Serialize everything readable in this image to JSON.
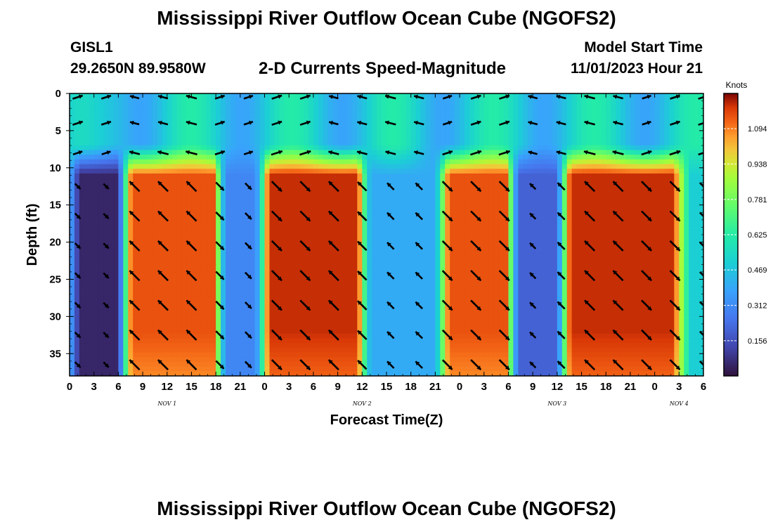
{
  "header": {
    "title": "Mississippi River Outflow Ocean Cube (NGOFS2)",
    "station_id": "GISL1",
    "station_coords": "29.2650N  89.9580W",
    "subtitle": "2-D Currents Speed-Magnitude",
    "model_start_label": "Model Start Time",
    "model_start_value": "11/01/2023 Hour 21"
  },
  "footer": {
    "title": "Mississippi River Outflow Ocean Cube (NGOFS2)"
  },
  "chart_data": {
    "type": "heatmap",
    "title": "2-D Currents Speed-Magnitude",
    "xlabel": "Forecast Time(Z)",
    "ylabel": "Depth (ft)",
    "x_tick_labels": [
      "0",
      "3",
      "6",
      "9",
      "12",
      "15",
      "18",
      "21",
      "0",
      "3",
      "6",
      "9",
      "12",
      "15",
      "18",
      "21",
      "0",
      "3",
      "6",
      "9",
      "12",
      "15",
      "18",
      "21",
      "0",
      "3",
      "6"
    ],
    "x_tick_hours": [
      0,
      3,
      6,
      9,
      12,
      15,
      18,
      21,
      24,
      27,
      30,
      33,
      36,
      39,
      42,
      45,
      48,
      51,
      54,
      57,
      60,
      63,
      66,
      69,
      72,
      75,
      78
    ],
    "x_range_hours": [
      0,
      78
    ],
    "day_labels": [
      {
        "label": "NOV 1",
        "hour": 12
      },
      {
        "label": "NOV 2",
        "hour": 36
      },
      {
        "label": "NOV 3",
        "hour": 60
      },
      {
        "label": "NOV 4",
        "hour": 75
      }
    ],
    "y_ticks": [
      "0",
      "5",
      "10",
      "15",
      "20",
      "25",
      "30",
      "35"
    ],
    "y_tick_values": [
      0,
      5,
      10,
      15,
      20,
      25,
      30,
      35
    ],
    "y_range_ft": [
      0,
      38
    ],
    "colorbar": {
      "label": "Knots",
      "ticks": [
        "1.094",
        "0.938",
        "0.781",
        "0.625",
        "0.469",
        "0.312",
        "0.156"
      ],
      "tick_values": [
        1.094,
        0.938,
        0.781,
        0.625,
        0.469,
        0.312,
        0.156
      ],
      "range": [
        0.0,
        1.25
      ]
    },
    "high_speed_periods": [
      {
        "start_hour": 7,
        "end_hour": 19,
        "peak_knots": 1.15
      },
      {
        "start_hour": 24,
        "end_hour": 36,
        "peak_knots": 1.2
      },
      {
        "start_hour": 46,
        "end_hour": 55,
        "peak_knots": 1.15
      },
      {
        "start_hour": 61,
        "end_hour": 75,
        "peak_knots": 1.2
      }
    ],
    "low_speed_periods": [
      {
        "start_hour": 2,
        "end_hour": 5,
        "min_knots": 0.05
      },
      {
        "start_hour": 20,
        "end_hour": 22,
        "min_knots": 0.3
      },
      {
        "start_hour": 38,
        "end_hour": 44,
        "min_knots": 0.4
      },
      {
        "start_hour": 56,
        "end_hour": 59,
        "min_knots": 0.2
      }
    ],
    "surface_layer_depth_ft": [
      0,
      8
    ]
  }
}
